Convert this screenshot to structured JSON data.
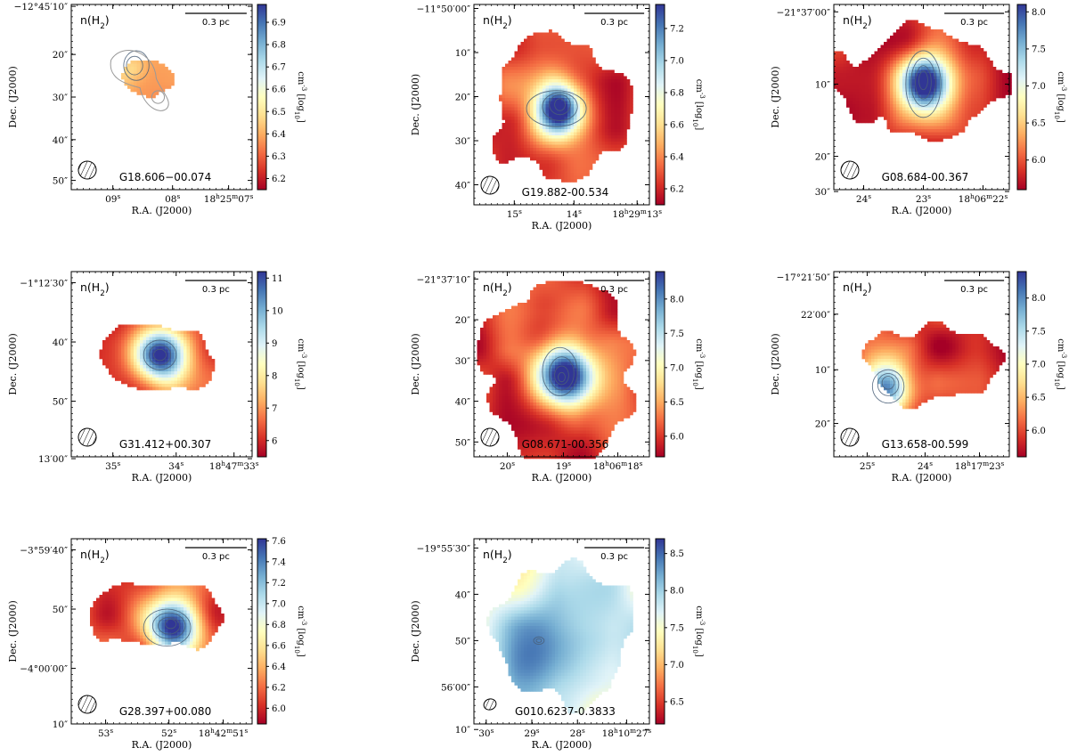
{
  "figure": {
    "panel_label": "n(H$_2$)",
    "colorbar_label": "cm$^{-3}$ [log$_{10}$]",
    "xlabel": "R.A. (J2000)",
    "ylabel": "Dec. (J2000)",
    "scalebar_label": "0.3 pc"
  },
  "chart_data": [
    {
      "type": "heatmap",
      "title": "G18.606−00.074",
      "xlabel": "R.A. (J2000)",
      "ylabel": "Dec. (J2000)",
      "xticks": [
        "09$^s$",
        "08$^s$",
        "18$^h$25$^m$07$^s$"
      ],
      "yticks": [
        "−12°45′10″",
        "20″",
        "30″",
        "40″",
        "50″"
      ],
      "colorbar": {
        "label": "cm$^{-3}$ [log$_{10}$]",
        "range": [
          6.15,
          6.98
        ],
        "ticks": [
          "6.2",
          "6.3",
          "6.4",
          "6.5",
          "6.6",
          "6.7",
          "6.8",
          "6.9"
        ]
      },
      "scalebar": "0.3 pc",
      "panel_label": "n(H$_2$)"
    },
    {
      "type": "heatmap",
      "title": "G19.882-00.534",
      "xlabel": "R.A. (J2000)",
      "ylabel": "Dec. (J2000)",
      "xticks": [
        "15$^s$",
        "14$^s$",
        "18$^h$29$^m$13$^s$"
      ],
      "yticks": [
        "−11°50′00″",
        "10″",
        "20″",
        "30″",
        "40″"
      ],
      "colorbar": {
        "label": "cm$^{-3}$ [log$_{10}$]",
        "range": [
          6.1,
          7.35
        ],
        "ticks": [
          "6.2",
          "6.4",
          "6.6",
          "6.8",
          "7.0",
          "7.2"
        ]
      },
      "scalebar": "0.3 pc",
      "panel_label": "n(H$_2$)"
    },
    {
      "type": "heatmap",
      "title": "G08.684-00.367",
      "xlabel": "R.A. (J2000)",
      "ylabel": "Dec. (J2000)",
      "xticks": [
        "24$^s$",
        "23$^s$",
        "18$^h$06$^m$22$^s$"
      ],
      "yticks": [
        "−21°37′00″",
        "10″",
        "20″",
        "30″"
      ],
      "colorbar": {
        "label": "cm$^{-3}$ [log$_{10}$]",
        "range": [
          5.6,
          8.1
        ],
        "ticks": [
          "6.0",
          "6.5",
          "7.0",
          "7.5",
          "8.0"
        ]
      },
      "scalebar": "0.3 pc",
      "panel_label": "n(H$_2$)"
    },
    {
      "type": "heatmap",
      "title": "G31.412+00.307",
      "xlabel": "R.A. (J2000)",
      "ylabel": "Dec. (J2000)",
      "xticks": [
        "35$^s$",
        "34$^s$",
        "18$^h$47$^m$33$^s$"
      ],
      "yticks": [
        "−1°12′30″",
        "40″",
        "50″",
        "13′00″"
      ],
      "colorbar": {
        "label": "cm$^{-3}$ [log$_{10}$]",
        "range": [
          5.5,
          11.2
        ],
        "ticks": [
          "6",
          "7",
          "8",
          "9",
          "10",
          "11"
        ]
      },
      "scalebar": "0.3 pc",
      "panel_label": "n(H$_2$)"
    },
    {
      "type": "heatmap",
      "title": "G08.671-00.356",
      "xlabel": "R.A. (J2000)",
      "ylabel": "Dec. (J2000)",
      "xticks": [
        "20$^s$",
        "19$^s$",
        "18$^h$06$^m$18$^s$"
      ],
      "yticks": [
        "−21°37′10″",
        "20″",
        "30″",
        "40″",
        "50″"
      ],
      "colorbar": {
        "label": "cm$^{-3}$ [log$_{10}$]",
        "range": [
          5.7,
          8.4
        ],
        "ticks": [
          "6.0",
          "6.5",
          "7.0",
          "7.5",
          "8.0"
        ]
      },
      "scalebar": "0.3 pc",
      "panel_label": "n(H$_2$)"
    },
    {
      "type": "heatmap",
      "title": "G13.658-00.599",
      "xlabel": "R.A. (J2000)",
      "ylabel": "Dec. (J2000)",
      "xticks": [
        "25$^s$",
        "24$^s$",
        "18$^h$17$^m$23$^s$"
      ],
      "yticks": [
        "−17°21′50″",
        "22′00″",
        "10″",
        "20″"
      ],
      "colorbar": {
        "label": "cm$^{-3}$ [log$_{10}$]",
        "range": [
          5.6,
          8.4
        ],
        "ticks": [
          "6.0",
          "6.5",
          "7.0",
          "7.5",
          "8.0"
        ]
      },
      "scalebar": "0.3 pc",
      "panel_label": "n(H$_2$)"
    },
    {
      "type": "heatmap",
      "title": "G28.397+00.080",
      "xlabel": "R.A. (J2000)",
      "ylabel": "Dec. (J2000)",
      "xticks": [
        "53$^s$",
        "52$^s$",
        "18$^h$42$^m$51$^s$"
      ],
      "yticks": [
        "−3°59′40″",
        "50″",
        "−4°00′00″",
        "10″"
      ],
      "colorbar": {
        "label": "cm$^{-3}$ [log$_{10}$]",
        "range": [
          5.85,
          7.62
        ],
        "ticks": [
          "6.0",
          "6.2",
          "6.4",
          "6.6",
          "6.8",
          "7.0",
          "7.2",
          "7.4",
          "7.6"
        ]
      },
      "scalebar": "0.3 pc",
      "panel_label": "n(H$_2$)"
    },
    {
      "type": "heatmap",
      "title": "G010.6237-0.3833",
      "xlabel": "R.A. (J2000)",
      "ylabel": "Dec. (J2000)",
      "xticks": [
        "30$^s$",
        "29$^s$",
        "28$^s$",
        "18$^h$10$^m$27$^s$"
      ],
      "yticks": [
        "−19°55′30″",
        "40″",
        "50″",
        "56′00″",
        "10″"
      ],
      "colorbar": {
        "label": "cm$^{-3}$ [log$_{10}$]",
        "range": [
          6.2,
          8.7
        ],
        "ticks": [
          "6.5",
          "7.0",
          "7.5",
          "8.0",
          "8.5"
        ]
      },
      "scalebar": "0.3 pc",
      "panel_label": "n(H$_2$)"
    }
  ]
}
